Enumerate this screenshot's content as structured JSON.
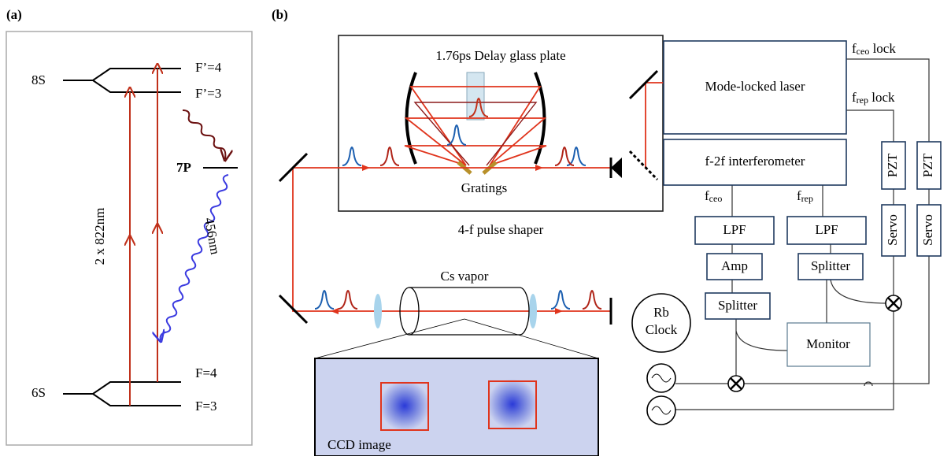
{
  "panel_a": {
    "label": "(a)",
    "upper_state": "8S",
    "upper_f4": "F’=4",
    "upper_f3": "F’=3",
    "middle_state": "7P",
    "excitation": "2 x 822nm",
    "emission": "456nm",
    "lower_state": "6S",
    "lower_f4": "F=4",
    "lower_f3": "F=3"
  },
  "panel_b": {
    "label": "(b)",
    "delay_plate": "1.76ps Delay glass plate",
    "gratings": "Gratings",
    "shaper": "4-f pulse shaper",
    "laser": "Mode-locked laser",
    "interferometer": "f-2f interferometer",
    "ceo_lock": {
      "f": "f",
      "sub": "ceo",
      "rest": " lock"
    },
    "rep_lock": {
      "f": "f",
      "sub": "rep",
      "rest": " lock"
    },
    "ceo": {
      "f": "f",
      "sub": "ceo"
    },
    "rep": {
      "f": "f",
      "sub": "rep"
    },
    "lpf_left": "LPF",
    "lpf_right": "LPF",
    "amp": "Amp",
    "splitter_left": "Splitter",
    "splitter_right": "Splitter",
    "monitor": "Monitor",
    "pzt_left": "PZT",
    "pzt_right": "PZT",
    "servo_left": "Servo",
    "servo_right": "Servo",
    "clock": [
      "Rb",
      "Clock"
    ],
    "vapor": "Cs vapor",
    "ccd": "CCD image"
  }
}
